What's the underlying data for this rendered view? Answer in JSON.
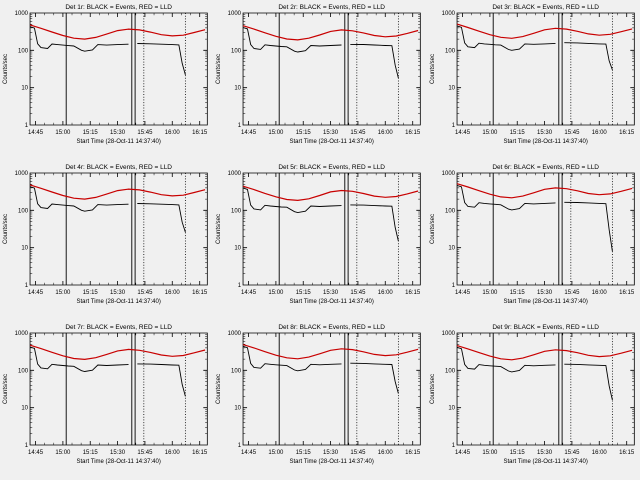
{
  "window": {
    "background": "#f0f0f0"
  },
  "chart_data": {
    "type": "line",
    "layout": {
      "rows": 3,
      "cols": 3,
      "grid": false,
      "legend": "none"
    },
    "xlabel": "Start Time (28-Oct-11 14:37:40)",
    "ylabel": "Counts/sec",
    "legend_note": "BLACK = Events, RED = LLD",
    "x_range": [
      14.7,
      16.32
    ],
    "y_range": [
      1,
      1000
    ],
    "y_scale": "log",
    "x_ticks": {
      "values": [
        14.75,
        15.0,
        15.25,
        15.5,
        15.75,
        16.0,
        16.25
      ],
      "labels": [
        "14:45",
        "15:00",
        "15:15",
        "15:30",
        "15:45",
        "16:00",
        "16:15"
      ]
    },
    "y_ticks": {
      "values": [
        1000,
        100,
        10,
        1
      ],
      "labels": [
        "1000",
        "100",
        "10",
        "1"
      ]
    },
    "series_colors": {
      "events": "#000000",
      "lld": "#c80000"
    },
    "vlines_solid": [
      15.03,
      15.63,
      15.66
    ],
    "vlines_dotted": [
      15.74,
      16.12
    ],
    "red_x": [
      14.7,
      14.8,
      14.9,
      15.0,
      15.1,
      15.2,
      15.3,
      15.4,
      15.5,
      15.6,
      15.7,
      15.8,
      15.9,
      16.0,
      16.1,
      16.2,
      16.3
    ],
    "black_x": [
      14.7,
      14.74,
      14.77,
      14.8,
      14.86,
      14.9,
      14.95,
      15.0,
      15.05,
      15.1,
      15.17,
      15.2,
      15.27,
      15.32,
      15.4,
      15.5,
      15.6,
      15.63,
      15.68,
      15.8,
      15.9,
      16.0,
      16.06,
      16.09,
      16.12
    ],
    "panels": [
      {
        "title": "Det 1r: BLACK = Events, RED = LLD",
        "red_y": [
          480,
          390,
          310,
          250,
          212,
          200,
          222,
          272,
          338,
          370,
          352,
          308,
          262,
          243,
          255,
          300,
          358
        ],
        "black_y": [
          430,
          395,
          150,
          118,
          112,
          148,
          142,
          138,
          134,
          131,
          100,
          95,
          103,
          142,
          138,
          142,
          146,
          null,
          152,
          150,
          146,
          142,
          140,
          45,
          22
        ]
      },
      {
        "title": "Det 2r: BLACK = Events, RED = LLD",
        "red_y": [
          456,
          371,
          295,
          238,
          201,
          190,
          211,
          258,
          321,
          352,
          334,
          293,
          249,
          231,
          242,
          285,
          340
        ],
        "black_y": [
          409,
          375,
          143,
          112,
          106,
          141,
          135,
          131,
          127,
          124,
          95,
          90,
          98,
          135,
          131,
          135,
          139,
          null,
          144,
          143,
          139,
          135,
          133,
          40,
          18
        ]
      },
      {
        "title": "Det 3r: BLACK = Events, RED = LLD",
        "red_y": [
          504,
          410,
          326,
          263,
          223,
          210,
          233,
          286,
          355,
          389,
          370,
          323,
          275,
          255,
          268,
          315,
          376
        ],
        "black_y": [
          452,
          415,
          158,
          124,
          118,
          155,
          149,
          145,
          141,
          138,
          105,
          100,
          108,
          149,
          145,
          149,
          153,
          null,
          160,
          158,
          153,
          149,
          147,
          52,
          30
        ]
      },
      {
        "title": "Det 4r: BLACK = Events, RED = LLD",
        "red_y": [
          480,
          390,
          310,
          250,
          212,
          200,
          222,
          272,
          338,
          370,
          352,
          308,
          262,
          243,
          255,
          300,
          358
        ],
        "black_y": [
          430,
          395,
          150,
          118,
          112,
          148,
          142,
          138,
          134,
          131,
          100,
          95,
          103,
          142,
          138,
          142,
          146,
          null,
          152,
          150,
          146,
          142,
          140,
          48,
          26
        ]
      },
      {
        "title": "Det 5r: BLACK = Events, RED = LLD",
        "red_y": [
          442,
          359,
          285,
          230,
          195,
          184,
          204,
          250,
          311,
          340,
          324,
          283,
          241,
          224,
          235,
          276,
          329
        ],
        "black_y": [
          396,
          363,
          138,
          109,
          103,
          136,
          131,
          127,
          123,
          121,
          92,
          87,
          95,
          131,
          127,
          131,
          134,
          null,
          140,
          138,
          134,
          131,
          129,
          35,
          15
        ]
      },
      {
        "title": "Det 6r: BLACK = Events, RED = LLD",
        "red_y": [
          518,
          421,
          335,
          270,
          229,
          216,
          240,
          294,
          365,
          400,
          380,
          333,
          283,
          262,
          275,
          324,
          387
        ],
        "black_y": [
          464,
          427,
          162,
          127,
          121,
          160,
          153,
          149,
          145,
          141,
          108,
          103,
          111,
          153,
          149,
          153,
          158,
          null,
          164,
          162,
          158,
          153,
          151,
          30,
          8
        ]
      },
      {
        "title": "Det 7r: BLACK = Events, RED = LLD",
        "red_y": [
          470,
          382,
          304,
          245,
          208,
          196,
          218,
          267,
          331,
          363,
          345,
          302,
          257,
          238,
          250,
          294,
          351
        ],
        "black_y": [
          421,
          387,
          147,
          116,
          110,
          145,
          139,
          135,
          131,
          128,
          98,
          93,
          101,
          139,
          135,
          139,
          143,
          null,
          149,
          147,
          143,
          139,
          137,
          42,
          20
        ]
      },
      {
        "title": "Det 8r: BLACK = Events, RED = LLD",
        "red_y": [
          490,
          398,
          316,
          255,
          216,
          204,
          226,
          277,
          345,
          377,
          359,
          314,
          267,
          248,
          260,
          306,
          365
        ],
        "black_y": [
          439,
          403,
          153,
          120,
          114,
          151,
          145,
          141,
          137,
          134,
          102,
          97,
          105,
          145,
          141,
          145,
          149,
          null,
          155,
          153,
          149,
          145,
          143,
          50,
          24
        ]
      },
      {
        "title": "Det 9r: BLACK = Events, RED = LLD",
        "red_y": [
          461,
          374,
          298,
          240,
          204,
          192,
          213,
          261,
          324,
          355,
          338,
          296,
          252,
          233,
          245,
          288,
          344
        ],
        "black_y": [
          413,
          379,
          144,
          113,
          108,
          142,
          136,
          132,
          129,
          126,
          96,
          91,
          99,
          136,
          132,
          136,
          140,
          null,
          146,
          144,
          140,
          136,
          134,
          38,
          16
        ]
      }
    ]
  }
}
